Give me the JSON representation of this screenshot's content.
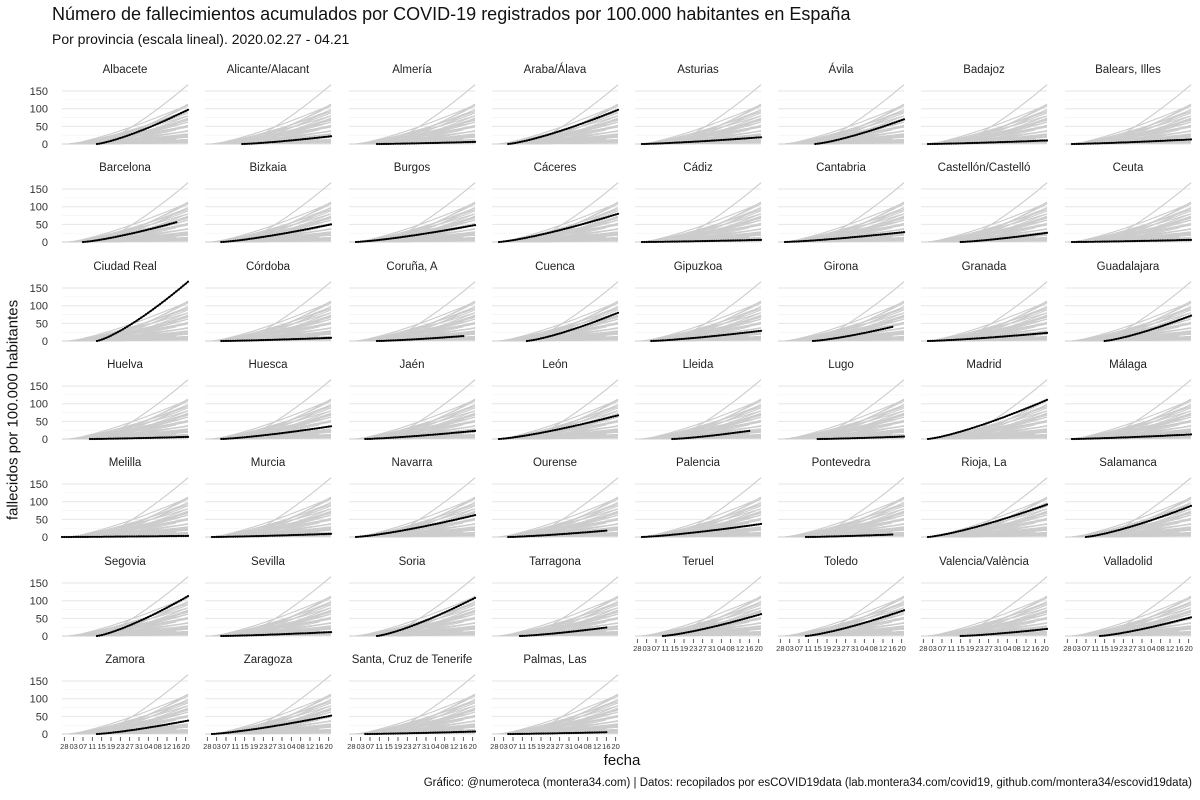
{
  "chart_data": {
    "type": "line",
    "title": "Número de fallecimientos acumulados por COVID-19 registrados por 100.000 habitantes en España",
    "subtitle": "Por provincia  (escala lineal). 2020.02.27 - 04.21",
    "xlabel": "fecha",
    "ylabel": "fallecidos por 100.000 habitantes",
    "caption": "Gráfico: @numeroteca (montera34.com) | Datos: recopilados por esCOVID19data (lab.montera34.com/covid19, github.com/montera34/escovid19data)",
    "ylim": [
      0,
      170
    ],
    "y_ticks": [
      0,
      50,
      100,
      150,
      "",
      "",
      "",
      "",
      ""
    ],
    "y_tick_values": [
      0,
      25,
      50,
      75,
      100,
      125,
      150
    ],
    "y_tick_labels": [
      "0",
      "50",
      "100",
      "150"
    ],
    "x_tick_labels": [
      "28",
      "03",
      "07",
      "11",
      "15",
      "19",
      "23",
      "27",
      "31",
      "04",
      "08",
      "12",
      "16",
      "20"
    ],
    "x_range_dates": [
      "2020-02-27",
      "2020-04-21"
    ],
    "grid": true,
    "facet_columns": 8,
    "colors": {
      "highlight": "#000000",
      "background_series": "#cccccc",
      "grid": "#ebebeb"
    },
    "panels": [
      {
        "name": "Albacete",
        "start": "2020-03-13",
        "end": "2020-04-21",
        "final": 97
      },
      {
        "name": "Alicante/Alacant",
        "start": "2020-03-14",
        "end": "2020-04-21",
        "final": 22
      },
      {
        "name": "Almería",
        "start": "2020-03-10",
        "end": "2020-04-21",
        "final": 6
      },
      {
        "name": "Araba/Álava",
        "start": "2020-03-05",
        "end": "2020-04-21",
        "final": 97
      },
      {
        "name": "Asturias",
        "start": "2020-03-01",
        "end": "2020-04-21",
        "final": 19
      },
      {
        "name": "Ávila",
        "start": "2020-03-14",
        "end": "2020-04-21",
        "final": 70
      },
      {
        "name": "Badajoz",
        "start": "2020-03-01",
        "end": "2020-04-21",
        "final": 10
      },
      {
        "name": "Balears, Illes",
        "start": "2020-03-01",
        "end": "2020-04-21",
        "final": 13
      },
      {
        "name": "Barcelona",
        "start": "2020-03-07",
        "end": "2020-04-16",
        "final": 56
      },
      {
        "name": "Bizkaia",
        "start": "2020-03-05",
        "end": "2020-04-21",
        "final": 50
      },
      {
        "name": "Burgos",
        "start": "2020-03-01",
        "end": "2020-04-21",
        "final": 48
      },
      {
        "name": "Cáceres",
        "start": "2020-03-01",
        "end": "2020-04-21",
        "final": 80
      },
      {
        "name": "Cádiz",
        "start": "2020-03-01",
        "end": "2020-04-21",
        "final": 6
      },
      {
        "name": "Cantabria",
        "start": "2020-03-01",
        "end": "2020-04-21",
        "final": 28
      },
      {
        "name": "Castellón/Castelló",
        "start": "2020-03-15",
        "end": "2020-04-21",
        "final": 26
      },
      {
        "name": "Ceuta",
        "start": "2020-03-01",
        "end": "2020-04-21",
        "final": 6
      },
      {
        "name": "Ciudad Real",
        "start": "2020-03-13",
        "end": "2020-04-21",
        "final": 168
      },
      {
        "name": "Córdoba",
        "start": "2020-03-05",
        "end": "2020-04-21",
        "final": 9
      },
      {
        "name": "Coruña, A",
        "start": "2020-03-10",
        "end": "2020-04-16",
        "final": 14
      },
      {
        "name": "Cuenca",
        "start": "2020-03-13",
        "end": "2020-04-21",
        "final": 80
      },
      {
        "name": "Gipuzkoa",
        "start": "2020-03-05",
        "end": "2020-04-21",
        "final": 29
      },
      {
        "name": "Girona",
        "start": "2020-03-13",
        "end": "2020-04-16",
        "final": 40
      },
      {
        "name": "Granada",
        "start": "2020-03-01",
        "end": "2020-04-21",
        "final": 23
      },
      {
        "name": "Guadalajara",
        "start": "2020-03-15",
        "end": "2020-04-21",
        "final": 72
      },
      {
        "name": "Huelva",
        "start": "2020-03-10",
        "end": "2020-04-21",
        "final": 6
      },
      {
        "name": "Huesca",
        "start": "2020-03-05",
        "end": "2020-04-21",
        "final": 36
      },
      {
        "name": "Jaén",
        "start": "2020-03-05",
        "end": "2020-04-21",
        "final": 23
      },
      {
        "name": "León",
        "start": "2020-03-01",
        "end": "2020-04-21",
        "final": 67
      },
      {
        "name": "Lleida",
        "start": "2020-03-14",
        "end": "2020-04-16",
        "final": 23
      },
      {
        "name": "Lugo",
        "start": "2020-03-15",
        "end": "2020-04-21",
        "final": 7
      },
      {
        "name": "Madrid",
        "start": "2020-03-01",
        "end": "2020-04-21",
        "final": 111
      },
      {
        "name": "Málaga",
        "start": "2020-03-01",
        "end": "2020-04-21",
        "final": 13
      },
      {
        "name": "Melilla",
        "start": "2020-02-27",
        "end": "2020-04-21",
        "final": 3
      },
      {
        "name": "Murcia",
        "start": "2020-03-01",
        "end": "2020-04-21",
        "final": 9
      },
      {
        "name": "Navarra",
        "start": "2020-03-01",
        "end": "2020-04-21",
        "final": 62
      },
      {
        "name": "Ourense",
        "start": "2020-03-05",
        "end": "2020-04-16",
        "final": 18
      },
      {
        "name": "Palencia",
        "start": "2020-03-01",
        "end": "2020-04-21",
        "final": 37
      },
      {
        "name": "Pontevedra",
        "start": "2020-03-10",
        "end": "2020-04-16",
        "final": 7
      },
      {
        "name": "Rioja, La",
        "start": "2020-03-01",
        "end": "2020-04-21",
        "final": 92
      },
      {
        "name": "Salamanca",
        "start": "2020-03-07",
        "end": "2020-04-21",
        "final": 88
      },
      {
        "name": "Segovia",
        "start": "2020-03-13",
        "end": "2020-04-21",
        "final": 113
      },
      {
        "name": "Sevilla",
        "start": "2020-03-05",
        "end": "2020-04-21",
        "final": 11
      },
      {
        "name": "Soria",
        "start": "2020-03-10",
        "end": "2020-04-21",
        "final": 108
      },
      {
        "name": "Tarragona",
        "start": "2020-03-10",
        "end": "2020-04-16",
        "final": 24
      },
      {
        "name": "Teruel",
        "start": "2020-03-10",
        "end": "2020-04-21",
        "final": 62
      },
      {
        "name": "Toledo",
        "start": "2020-03-10",
        "end": "2020-04-21",
        "final": 73
      },
      {
        "name": "Valencia/València",
        "start": "2020-03-15",
        "end": "2020-04-21",
        "final": 20
      },
      {
        "name": "Valladolid",
        "start": "2020-03-13",
        "end": "2020-04-21",
        "final": 53
      },
      {
        "name": "Zamora",
        "start": "2020-03-13",
        "end": "2020-04-21",
        "final": 38
      },
      {
        "name": "Zaragoza",
        "start": "2020-03-01",
        "end": "2020-04-21",
        "final": 52
      },
      {
        "name": "Santa, Cruz de Tenerife",
        "start": "2020-03-05",
        "end": "2020-04-21",
        "final": 7
      },
      {
        "name": "Palmas, Las",
        "start": "2020-03-05",
        "end": "2020-04-16",
        "final": 5
      }
    ]
  }
}
